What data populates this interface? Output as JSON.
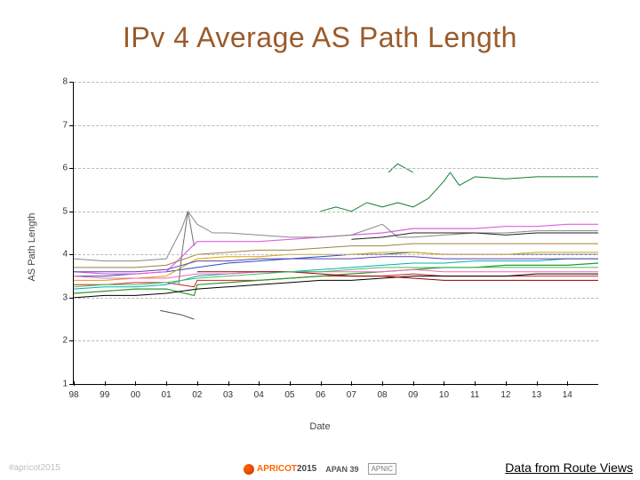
{
  "title": {
    "text": "IPv 4 Average AS Path Length",
    "color": "#9a5b2a",
    "fontsize": 32
  },
  "attribution": "Data from Route Views",
  "footer_left": "#apricot2015",
  "footer_logos": {
    "apricot_text": "APRICOT",
    "apricot_year": "2015",
    "apricot_color1": "#ff6600",
    "apricot_color2": "#444444",
    "apan": "APAN 39",
    "apnic": "APNIC"
  },
  "chart": {
    "type": "line",
    "xlabel": "Date",
    "ylabel": "AS Path Length",
    "label_fontsize": 11,
    "tick_fontsize": 10,
    "background": "#ffffff",
    "grid_color": "#bbbbbb",
    "grid_dash": "4,3",
    "axis_color": "#000000",
    "ylim": [
      1,
      8
    ],
    "ymajor": [
      1,
      2,
      3,
      4,
      5,
      6,
      7,
      8
    ],
    "xlim": [
      98,
      115
    ],
    "xmajor": [
      98,
      99,
      100,
      101,
      102,
      103,
      104,
      105,
      106,
      107,
      108,
      109,
      110,
      111,
      112,
      113,
      114
    ],
    "xlabels": [
      "98",
      "99",
      "00",
      "01",
      "02",
      "03",
      "04",
      "05",
      "06",
      "07",
      "08",
      "09",
      "10",
      "11",
      "12",
      "13",
      "14"
    ],
    "series": [
      {
        "color": "#d02020",
        "width": 1.0,
        "pts": [
          [
            98,
            3.3
          ],
          [
            99,
            3.3
          ],
          [
            100,
            3.35
          ],
          [
            101,
            3.35
          ],
          [
            101.9,
            3.25
          ],
          [
            102,
            3.4
          ],
          [
            103,
            3.4
          ],
          [
            104,
            3.4
          ],
          [
            105,
            3.45
          ],
          [
            106,
            3.5
          ],
          [
            107,
            3.5
          ],
          [
            108,
            3.5
          ],
          [
            109,
            3.55
          ],
          [
            110,
            3.5
          ],
          [
            111,
            3.5
          ],
          [
            112,
            3.5
          ],
          [
            113,
            3.5
          ],
          [
            114,
            3.5
          ],
          [
            115,
            3.5
          ]
        ]
      },
      {
        "color": "#2a9a2a",
        "width": 1.2,
        "pts": [
          [
            98,
            3.1
          ],
          [
            99,
            3.15
          ],
          [
            100,
            3.2
          ],
          [
            101,
            3.2
          ],
          [
            101.9,
            3.05
          ],
          [
            102,
            3.3
          ],
          [
            103,
            3.35
          ],
          [
            104,
            3.4
          ],
          [
            105,
            3.45
          ],
          [
            106,
            3.5
          ],
          [
            107,
            3.55
          ],
          [
            108,
            3.6
          ],
          [
            109,
            3.65
          ],
          [
            110,
            3.7
          ],
          [
            111,
            3.7
          ],
          [
            112,
            3.75
          ],
          [
            113,
            3.75
          ],
          [
            114,
            3.75
          ],
          [
            115,
            3.8
          ]
        ]
      },
      {
        "color": "#2050c0",
        "width": 1.0,
        "pts": [
          [
            98,
            3.5
          ],
          [
            99,
            3.5
          ],
          [
            100,
            3.55
          ],
          [
            101,
            3.6
          ],
          [
            102,
            3.7
          ],
          [
            103,
            3.8
          ],
          [
            104,
            3.85
          ],
          [
            105,
            3.9
          ],
          [
            106,
            3.95
          ],
          [
            107,
            4.0
          ],
          [
            108,
            4.0
          ],
          [
            109,
            4.05
          ],
          [
            110,
            4.0
          ],
          [
            111,
            4.0
          ],
          [
            112,
            4.0
          ],
          [
            113,
            4.0
          ],
          [
            114,
            4.0
          ],
          [
            115,
            4.0
          ]
        ]
      },
      {
        "color": "#e060e0",
        "width": 1.2,
        "pts": [
          [
            98,
            3.6
          ],
          [
            99,
            3.55
          ],
          [
            100,
            3.55
          ],
          [
            101,
            3.6
          ],
          [
            102,
            4.3
          ],
          [
            103,
            4.3
          ],
          [
            104,
            4.3
          ],
          [
            105,
            4.35
          ],
          [
            106,
            4.4
          ],
          [
            107,
            4.45
          ],
          [
            108,
            4.5
          ],
          [
            109,
            4.6
          ],
          [
            110,
            4.6
          ],
          [
            111,
            4.6
          ],
          [
            112,
            4.65
          ],
          [
            113,
            4.65
          ],
          [
            114,
            4.7
          ],
          [
            115,
            4.7
          ]
        ]
      },
      {
        "color": "#00b0b0",
        "width": 1.0,
        "pts": [
          [
            98,
            3.2
          ],
          [
            99,
            3.25
          ],
          [
            100,
            3.25
          ],
          [
            101,
            3.3
          ],
          [
            102,
            3.5
          ],
          [
            103,
            3.55
          ],
          [
            104,
            3.6
          ],
          [
            105,
            3.6
          ],
          [
            106,
            3.65
          ],
          [
            107,
            3.7
          ],
          [
            108,
            3.75
          ],
          [
            109,
            3.8
          ],
          [
            110,
            3.8
          ],
          [
            111,
            3.85
          ],
          [
            112,
            3.85
          ],
          [
            113,
            3.85
          ],
          [
            114,
            3.9
          ],
          [
            115,
            3.9
          ]
        ]
      },
      {
        "color": "#e0a000",
        "width": 1.0,
        "pts": [
          [
            98,
            3.4
          ],
          [
            99,
            3.4
          ],
          [
            100,
            3.45
          ],
          [
            101,
            3.5
          ],
          [
            102,
            3.9
          ],
          [
            103,
            3.95
          ],
          [
            104,
            3.95
          ],
          [
            105,
            4.0
          ],
          [
            106,
            4.0
          ],
          [
            107,
            4.0
          ],
          [
            108,
            4.05
          ],
          [
            109,
            4.05
          ],
          [
            110,
            4.0
          ],
          [
            111,
            4.0
          ],
          [
            112,
            4.0
          ],
          [
            113,
            4.05
          ],
          [
            114,
            4.05
          ],
          [
            115,
            4.05
          ]
        ]
      },
      {
        "color": "#a08040",
        "width": 1.0,
        "pts": [
          [
            98,
            3.7
          ],
          [
            99,
            3.7
          ],
          [
            100,
            3.7
          ],
          [
            101,
            3.75
          ],
          [
            102,
            4.0
          ],
          [
            103,
            4.05
          ],
          [
            104,
            4.1
          ],
          [
            105,
            4.1
          ],
          [
            106,
            4.15
          ],
          [
            107,
            4.2
          ],
          [
            108,
            4.2
          ],
          [
            109,
            4.25
          ],
          [
            110,
            4.25
          ],
          [
            111,
            4.25
          ],
          [
            112,
            4.25
          ],
          [
            113,
            4.25
          ],
          [
            114,
            4.25
          ],
          [
            115,
            4.25
          ]
        ]
      },
      {
        "color": "#888888",
        "width": 1.0,
        "pts": [
          [
            98,
            3.9
          ],
          [
            99,
            3.85
          ],
          [
            100,
            3.85
          ],
          [
            101,
            3.9
          ],
          [
            101.5,
            4.6
          ],
          [
            101.7,
            5.0
          ],
          [
            102,
            4.7
          ],
          [
            102.5,
            4.5
          ],
          [
            103,
            4.5
          ],
          [
            104,
            4.45
          ],
          [
            105,
            4.4
          ],
          [
            106,
            4.4
          ],
          [
            107,
            4.45
          ],
          [
            108,
            4.7
          ],
          [
            108.5,
            4.4
          ],
          [
            109,
            4.4
          ],
          [
            110,
            4.45
          ],
          [
            111,
            4.5
          ],
          [
            112,
            4.5
          ],
          [
            113,
            4.55
          ],
          [
            114,
            4.55
          ],
          [
            115,
            4.55
          ]
        ]
      },
      {
        "color": "#108030",
        "width": 1.0,
        "pts": [
          [
            106,
            5.0
          ],
          [
            106.5,
            5.1
          ],
          [
            107,
            5.0
          ],
          [
            107.5,
            5.2
          ],
          [
            108,
            5.1
          ],
          [
            108.5,
            5.2
          ],
          [
            109,
            5.1
          ],
          [
            109.5,
            5.3
          ],
          [
            110,
            5.7
          ],
          [
            110.2,
            5.9
          ],
          [
            110.5,
            5.6
          ],
          [
            111,
            5.8
          ],
          [
            112,
            5.75
          ],
          [
            113,
            5.8
          ],
          [
            114,
            5.8
          ],
          [
            115,
            5.8
          ]
        ]
      },
      {
        "color": "#108030",
        "width": 1.0,
        "pts": [
          [
            108.2,
            5.9
          ],
          [
            108.5,
            6.1
          ],
          [
            109,
            5.9
          ]
        ]
      },
      {
        "color": "#ff60c0",
        "width": 1.0,
        "pts": [
          [
            98,
            3.5
          ],
          [
            99,
            3.45
          ],
          [
            100,
            3.45
          ],
          [
            101,
            3.45
          ],
          [
            102,
            3.55
          ],
          [
            103,
            3.55
          ],
          [
            104,
            3.6
          ],
          [
            105,
            3.6
          ],
          [
            106,
            3.6
          ],
          [
            107,
            3.6
          ],
          [
            108,
            3.6
          ],
          [
            109,
            3.65
          ],
          [
            110,
            3.6
          ],
          [
            111,
            3.6
          ],
          [
            112,
            3.6
          ],
          [
            113,
            3.6
          ],
          [
            114,
            3.6
          ],
          [
            115,
            3.6
          ]
        ]
      },
      {
        "color": "#000000",
        "width": 1.0,
        "pts": [
          [
            98,
            3.0
          ],
          [
            99,
            3.05
          ],
          [
            100,
            3.05
          ],
          [
            101,
            3.1
          ],
          [
            102,
            3.2
          ],
          [
            103,
            3.25
          ],
          [
            104,
            3.3
          ],
          [
            105,
            3.35
          ],
          [
            106,
            3.4
          ],
          [
            107,
            3.4
          ],
          [
            108,
            3.45
          ],
          [
            109,
            3.5
          ],
          [
            110,
            3.5
          ],
          [
            111,
            3.5
          ],
          [
            112,
            3.5
          ],
          [
            113,
            3.55
          ],
          [
            114,
            3.55
          ],
          [
            115,
            3.55
          ]
        ]
      },
      {
        "color": "#6040b0",
        "width": 1.0,
        "pts": [
          [
            98,
            3.6
          ],
          [
            99,
            3.6
          ],
          [
            100,
            3.6
          ],
          [
            101,
            3.65
          ],
          [
            102,
            3.85
          ],
          [
            103,
            3.85
          ],
          [
            104,
            3.9
          ],
          [
            105,
            3.9
          ],
          [
            106,
            3.9
          ],
          [
            107,
            3.9
          ],
          [
            108,
            3.95
          ],
          [
            109,
            3.95
          ],
          [
            110,
            3.9
          ],
          [
            111,
            3.9
          ],
          [
            112,
            3.9
          ],
          [
            113,
            3.9
          ],
          [
            114,
            3.9
          ],
          [
            115,
            3.9
          ]
        ]
      },
      {
        "color": "#505050",
        "width": 1.0,
        "pts": [
          [
            100.8,
            2.7
          ],
          [
            101.5,
            2.6
          ],
          [
            101.9,
            2.5
          ]
        ]
      },
      {
        "color": "#707070",
        "width": 1.0,
        "pts": [
          [
            101.4,
            3.3
          ],
          [
            101.5,
            4.0
          ],
          [
            101.7,
            5.0
          ],
          [
            101.9,
            4.2
          ]
        ]
      },
      {
        "color": "#202020",
        "width": 1.0,
        "pts": [
          [
            107,
            4.35
          ],
          [
            108,
            4.4
          ],
          [
            109,
            4.5
          ],
          [
            110,
            4.5
          ],
          [
            111,
            4.5
          ],
          [
            112,
            4.45
          ],
          [
            113,
            4.5
          ],
          [
            114,
            4.5
          ],
          [
            115,
            4.5
          ]
        ]
      },
      {
        "color": "#900000",
        "width": 1.0,
        "pts": [
          [
            102,
            3.6
          ],
          [
            103,
            3.6
          ],
          [
            104,
            3.6
          ],
          [
            105,
            3.6
          ],
          [
            106,
            3.55
          ],
          [
            107,
            3.5
          ],
          [
            108,
            3.5
          ],
          [
            109,
            3.45
          ],
          [
            110,
            3.4
          ],
          [
            111,
            3.4
          ],
          [
            112,
            3.4
          ],
          [
            113,
            3.4
          ],
          [
            114,
            3.4
          ],
          [
            115,
            3.4
          ]
        ]
      },
      {
        "color": "#40c060",
        "width": 1.0,
        "pts": [
          [
            98,
            3.25
          ],
          [
            99,
            3.3
          ],
          [
            100,
            3.3
          ],
          [
            101,
            3.35
          ],
          [
            102,
            3.45
          ],
          [
            103,
            3.5
          ],
          [
            104,
            3.55
          ],
          [
            105,
            3.6
          ],
          [
            106,
            3.6
          ],
          [
            107,
            3.65
          ],
          [
            108,
            3.7
          ],
          [
            109,
            3.7
          ],
          [
            110,
            3.7
          ],
          [
            111,
            3.7
          ],
          [
            112,
            3.7
          ],
          [
            113,
            3.7
          ],
          [
            114,
            3.7
          ],
          [
            115,
            3.7
          ]
        ]
      }
    ]
  }
}
